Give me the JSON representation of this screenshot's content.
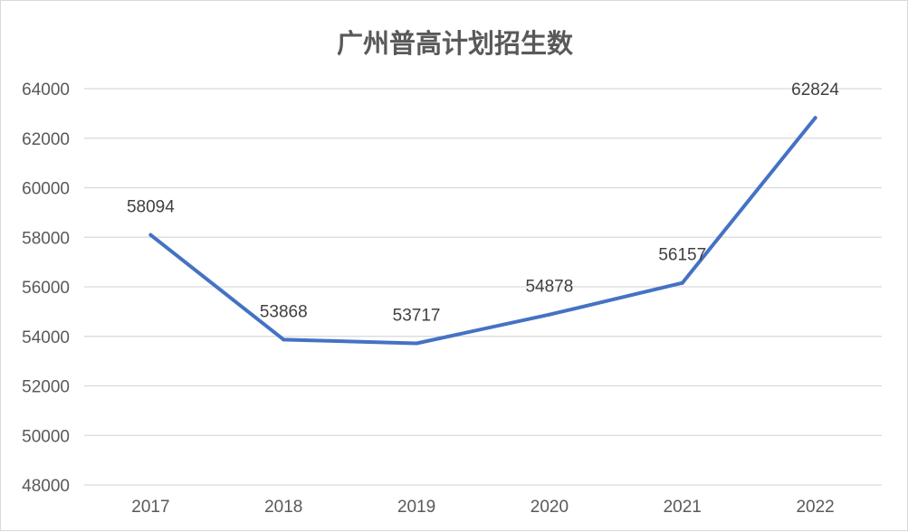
{
  "chart_data": {
    "type": "line",
    "title": "广州普高计划招生数",
    "categories": [
      "2017",
      "2018",
      "2019",
      "2020",
      "2021",
      "2022"
    ],
    "series": [
      {
        "values": [
          58094,
          53868,
          53717,
          54878,
          56157,
          62824
        ],
        "color": "#4472C4"
      }
    ],
    "data_labels": true,
    "ylim": [
      48000,
      64000
    ],
    "yticks": [
      48000,
      50000,
      52000,
      54000,
      56000,
      58000,
      60000,
      62000,
      64000
    ],
    "grid": true,
    "xlabel": "",
    "ylabel": ""
  }
}
